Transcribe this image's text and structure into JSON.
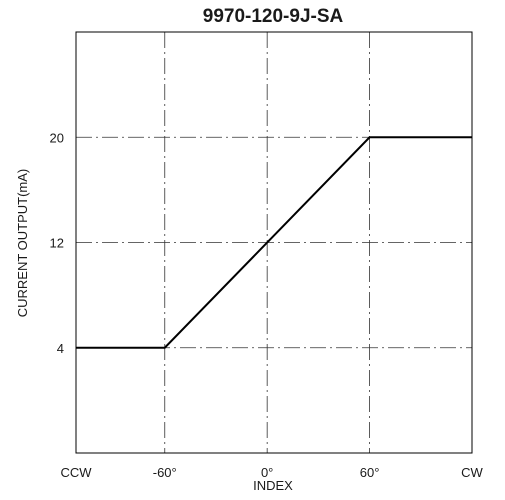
{
  "chart_data": {
    "type": "line",
    "title": "9970-120-9J-SA",
    "xlabel": "INDEX",
    "ylabel": "CURRENT OUTPUT(mA)",
    "x_ticks": [
      {
        "label": "CCW",
        "value": -112
      },
      {
        "label": "-60°",
        "value": -60
      },
      {
        "label": "0°",
        "value": 0
      },
      {
        "label": "60°",
        "value": 60
      },
      {
        "label": "CW",
        "value": 120
      }
    ],
    "y_ticks": [
      {
        "label": "4",
        "value": 4
      },
      {
        "label": "12",
        "value": 12
      },
      {
        "label": "20",
        "value": 20
      }
    ],
    "xlim": [
      -112,
      120
    ],
    "ylim": [
      -4,
      28
    ],
    "grid": true,
    "series": [
      {
        "points": [
          {
            "x": -112,
            "y": 4
          },
          {
            "x": -60,
            "y": 4
          },
          {
            "x": 60,
            "y": 20
          },
          {
            "x": 120,
            "y": 20
          }
        ],
        "color": "#000000"
      }
    ]
  }
}
